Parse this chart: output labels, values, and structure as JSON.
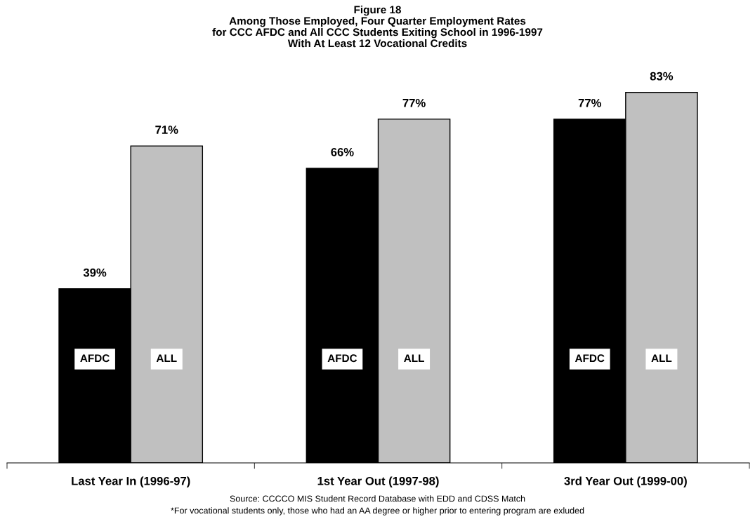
{
  "chart_data": {
    "type": "bar",
    "title": "Figure 18",
    "subtitle": "Among Those Employed, Four Quarter Employment Rates\nfor CCC AFDC and All CCC Students Exiting School in 1996-1997\nWith At Least 12 Vocational Credits",
    "categories": [
      "Last Year In (1996-97)",
      "1st Year Out (1997-98)",
      "3rd Year Out (1999-00)"
    ],
    "series": [
      {
        "name": "AFDC",
        "color": "#000000",
        "values": [
          39,
          66,
          77
        ],
        "value_labels": [
          "39%",
          "66%",
          "77%"
        ]
      },
      {
        "name": "ALL",
        "color": "#c0c0c0",
        "values": [
          71,
          77,
          83
        ],
        "value_labels": [
          "71%",
          "77%",
          "83%"
        ]
      }
    ],
    "annotations": [
      "Source: CCCCO MIS Student Record Database with EDD and CDSS Match",
      "*For vocational students only, those who had an AA degree or higher prior to entering program are exluded"
    ],
    "legend": false,
    "grid": false
  }
}
